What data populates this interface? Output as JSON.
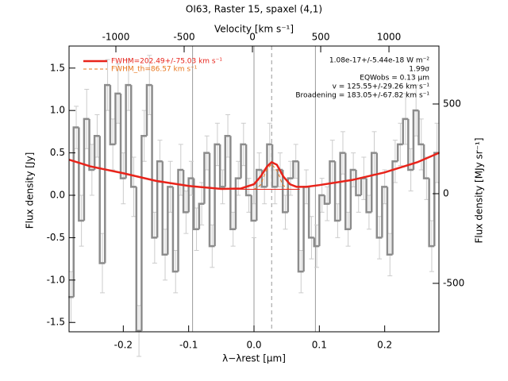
{
  "chart_data": {
    "type": "step",
    "title": "OI63, Raster 15, spaxel (4,1)",
    "xlabel": "λ−λrest [μm]",
    "ylabel": "Flux density [Jy]",
    "x2label": "Velocity [km s⁻¹]",
    "y2label": "Flux density [MJy sr⁻¹]",
    "color": "#8c8c8c",
    "x": [
      -0.28,
      -0.272,
      -0.264,
      -0.256,
      -0.248,
      -0.24,
      -0.232,
      -0.224,
      -0.216,
      -0.208,
      -0.2,
      -0.192,
      -0.184,
      -0.176,
      -0.168,
      -0.16,
      -0.152,
      -0.144,
      -0.136,
      -0.128,
      -0.12,
      -0.112,
      -0.104,
      -0.096,
      -0.088,
      -0.08,
      -0.072,
      -0.064,
      -0.056,
      -0.048,
      -0.04,
      -0.032,
      -0.024,
      -0.016,
      -0.008,
      0,
      0.008,
      0.016,
      0.024,
      0.032,
      0.04,
      0.048,
      0.056,
      0.064,
      0.072,
      0.08,
      0.088,
      0.096,
      0.104,
      0.112,
      0.12,
      0.128,
      0.136,
      0.144,
      0.152,
      0.16,
      0.168,
      0.176,
      0.184,
      0.192,
      0.2,
      0.208,
      0.216,
      0.224,
      0.232,
      0.24,
      0.248,
      0.256,
      0.264,
      0.272,
      0.28
    ],
    "values": [
      -1.2,
      0.8,
      -0.3,
      0.9,
      0.3,
      0.7,
      -0.8,
      1.3,
      0.6,
      1.2,
      0.2,
      1.3,
      0.1,
      -1.6,
      0.7,
      1.3,
      -0.5,
      0.4,
      -0.7,
      0.1,
      -0.9,
      0.3,
      -0.2,
      0.2,
      -0.4,
      -0.1,
      0.5,
      -0.6,
      0.6,
      0.1,
      0.7,
      -0.4,
      0.2,
      0.6,
      0.0,
      -0.3,
      0.3,
      0.1,
      0.6,
      0.1,
      0.3,
      -0.2,
      0.2,
      0.4,
      -0.9,
      0.1,
      -0.5,
      -0.6,
      0.0,
      -0.1,
      0.4,
      -0.3,
      0.5,
      -0.4,
      0.3,
      0.0,
      0.2,
      -0.2,
      0.5,
      -0.5,
      0.1,
      -0.7,
      0.4,
      0.6,
      0.9,
      0.3,
      1.0,
      0.6,
      0.2,
      -0.6,
      0.5
    ],
    "errors": [
      0.3,
      0.25,
      0.3,
      0.35,
      0.3,
      0.25,
      0.35,
      0.3,
      0.3,
      0.35,
      0.3,
      0.3,
      0.35,
      0.3,
      0.3,
      0.35,
      0.3,
      0.25,
      0.3,
      0.3,
      0.25,
      0.3,
      0.25,
      0.2,
      0.25,
      0.25,
      0.2,
      0.25,
      0.25,
      0.2,
      0.25,
      0.2,
      0.2,
      0.25,
      0.2,
      0.2,
      0.2,
      0.2,
      0.25,
      0.2,
      0.2,
      0.2,
      0.2,
      0.2,
      0.25,
      0.2,
      0.25,
      0.25,
      0.2,
      0.2,
      0.25,
      0.2,
      0.25,
      0.2,
      0.2,
      0.2,
      0.25,
      0.2,
      0.25,
      0.25,
      0.2,
      0.25,
      0.25,
      0.25,
      0.3,
      0.25,
      0.3,
      0.3,
      0.25,
      0.3,
      0.35
    ],
    "xlim": [
      -0.283,
      0.283
    ],
    "ylim": [
      -1.61,
      1.76
    ],
    "xticks": [
      -0.2,
      -0.1,
      {
        "value": 0,
        "label": "0.0"
      },
      0.1,
      0.2
    ],
    "yticks": [
      -1.5,
      {
        "value": -1,
        "label": "-1.0"
      },
      -0.5,
      {
        "value": 0,
        "label": "0.0"
      },
      0.5,
      {
        "value": 1,
        "label": "1.0"
      },
      1.5
    ],
    "x2lim": [
      -1343,
      1366
    ],
    "x2ticks": [
      -1000,
      -500,
      0,
      500,
      1000
    ],
    "y2lim": [
      -770,
      823
    ],
    "y2ticks": [
      -500,
      0,
      500
    ],
    "vlines": [
      -0.094,
      0,
      0.094
    ],
    "center_line": 0.027,
    "fits": [
      {
        "name": "FWHM=202.49+/-75.03 km s⁻¹",
        "color": "#e8231a",
        "width": 2.5,
        "dash": false,
        "x": [
          -0.283,
          -0.25,
          -0.2,
          -0.15,
          -0.1,
          -0.05,
          -0.02,
          0,
          0.01,
          0.02,
          0.027,
          0.035,
          0.045,
          0.055,
          0.065,
          0.08,
          0.1,
          0.15,
          0.2,
          0.25,
          0.283
        ],
        "y": [
          0.42,
          0.34,
          0.26,
          0.17,
          0.11,
          0.075,
          0.08,
          0.13,
          0.22,
          0.34,
          0.39,
          0.36,
          0.22,
          0.13,
          0.1,
          0.1,
          0.12,
          0.18,
          0.27,
          0.39,
          0.5
        ]
      },
      {
        "name": "FWHM_th=86.57 km s⁻¹",
        "color": "#e8741a",
        "width": 1,
        "dash": true,
        "x": [
          0,
          0.01,
          0.018,
          0.027,
          0.036,
          0.044,
          0.054
        ],
        "y": [
          0.07,
          0.12,
          0.28,
          0.37,
          0.28,
          0.12,
          0.07
        ]
      },
      {
        "color": "#e8231a",
        "width": 1,
        "dash": false,
        "x": [
          -0.035,
          0.07
        ],
        "y": [
          0.07,
          0.07
        ]
      }
    ],
    "annotations": [
      "1.08e-17+/-5.44e-18 W m⁻²",
      "1.99σ",
      "EQWobs = 0.13 μm",
      "v = 125.55+/-29.26 km s⁻¹",
      "Broadening = 183.05+/-67.82 km s⁻¹"
    ]
  }
}
